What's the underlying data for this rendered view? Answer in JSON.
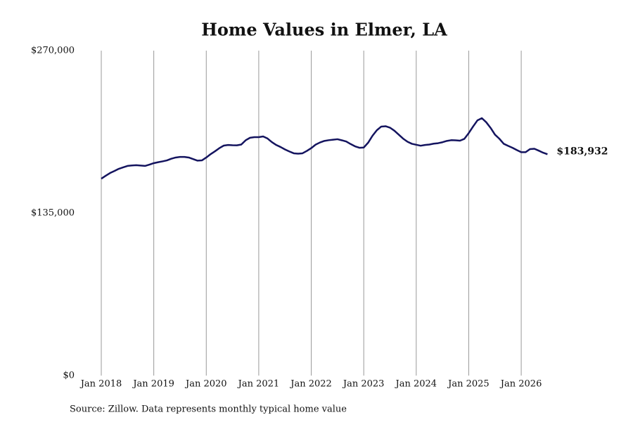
{
  "chart_data": {
    "type": "line",
    "title": "Home Values in Elmer, LA",
    "source": "Source: Zillow. Data represents monthly typical home value",
    "x": [
      "2018-01",
      "2018-02",
      "2018-03",
      "2018-04",
      "2018-05",
      "2018-06",
      "2018-07",
      "2018-08",
      "2018-09",
      "2018-10",
      "2018-11",
      "2018-12",
      "2019-01",
      "2019-02",
      "2019-03",
      "2019-04",
      "2019-05",
      "2019-06",
      "2019-07",
      "2019-08",
      "2019-09",
      "2019-10",
      "2019-11",
      "2019-12",
      "2020-01",
      "2020-02",
      "2020-03",
      "2020-04",
      "2020-05",
      "2020-06",
      "2020-07",
      "2020-08",
      "2020-09",
      "2020-10",
      "2020-11",
      "2020-12",
      "2021-01",
      "2021-02",
      "2021-03",
      "2021-04",
      "2021-05",
      "2021-06",
      "2021-07",
      "2021-08",
      "2021-09",
      "2021-10",
      "2021-11",
      "2021-12",
      "2022-01",
      "2022-02",
      "2022-03",
      "2022-04",
      "2022-05",
      "2022-06",
      "2022-07",
      "2022-08",
      "2022-09",
      "2022-10",
      "2022-11",
      "2022-12",
      "2023-01",
      "2023-02",
      "2023-03",
      "2023-04",
      "2023-05",
      "2023-06",
      "2023-07",
      "2023-08",
      "2023-09",
      "2023-10",
      "2023-11",
      "2023-12",
      "2024-01",
      "2024-02",
      "2024-03",
      "2024-04",
      "2024-05",
      "2024-06",
      "2024-07",
      "2024-08",
      "2024-09",
      "2024-10",
      "2024-11",
      "2024-12",
      "2025-01",
      "2025-02",
      "2025-03",
      "2025-04",
      "2025-05",
      "2025-06",
      "2025-07",
      "2025-08",
      "2025-09",
      "2025-10",
      "2025-11",
      "2025-12",
      "2026-01",
      "2026-02",
      "2026-03",
      "2026-04",
      "2026-05",
      "2026-06",
      "2026-07"
    ],
    "xticks": [
      {
        "value": "2018-01",
        "label": "Jan 2018"
      },
      {
        "value": "2019-01",
        "label": "Jan 2019"
      },
      {
        "value": "2020-01",
        "label": "Jan 2020"
      },
      {
        "value": "2021-01",
        "label": "Jan 2021"
      },
      {
        "value": "2022-01",
        "label": "Jan 2022"
      },
      {
        "value": "2023-01",
        "label": "Jan 2023"
      },
      {
        "value": "2024-01",
        "label": "Jan 2024"
      },
      {
        "value": "2025-01",
        "label": "Jan 2025"
      },
      {
        "value": "2026-01",
        "label": "Jan 2026"
      }
    ],
    "series": [
      {
        "color": "#14145f",
        "values": [
          163600,
          166000,
          168300,
          170000,
          171800,
          173000,
          174200,
          174600,
          174800,
          174500,
          174200,
          175300,
          176500,
          177300,
          178000,
          178800,
          180200,
          181200,
          181700,
          181700,
          181200,
          179900,
          178600,
          178800,
          181200,
          184000,
          186400,
          189000,
          191100,
          191600,
          191400,
          191300,
          192000,
          195500,
          197600,
          198100,
          198100,
          198700,
          197000,
          194000,
          191600,
          189900,
          187900,
          186200,
          184700,
          184400,
          184700,
          186700,
          189000,
          191900,
          193700,
          195000,
          195600,
          196000,
          196400,
          195500,
          194500,
          192400,
          190500,
          189300,
          189500,
          193500,
          199300,
          203900,
          206900,
          207200,
          206000,
          203500,
          200200,
          196900,
          194300,
          192600,
          191800,
          191000,
          191600,
          192000,
          192700,
          193100,
          193900,
          195000,
          195600,
          195500,
          195200,
          196700,
          201500,
          207000,
          212100,
          213900,
          210500,
          205800,
          200200,
          196800,
          192600,
          190900,
          189300,
          187400,
          185600,
          185600,
          188200,
          188500,
          186900,
          185200,
          183932
        ],
        "value_labels": [
          null,
          null,
          null,
          null,
          null,
          null,
          null,
          null,
          null,
          null,
          null,
          null,
          null,
          null,
          null,
          null,
          null,
          null,
          null,
          null,
          null,
          null,
          null,
          null,
          null,
          null,
          null,
          null,
          null,
          null,
          null,
          null,
          null,
          null,
          null,
          null,
          null,
          null,
          null,
          null,
          null,
          null,
          null,
          null,
          null,
          null,
          null,
          null,
          null,
          null,
          null,
          null,
          null,
          null,
          null,
          null,
          null,
          null,
          null,
          null,
          null,
          null,
          null,
          null,
          null,
          null,
          null,
          null,
          null,
          null,
          null,
          null,
          null,
          null,
          null,
          null,
          null,
          null,
          null,
          null,
          null,
          null,
          null,
          null,
          null,
          null,
          null,
          null,
          null,
          null,
          null,
          null,
          null,
          null,
          null,
          null,
          null,
          null,
          null,
          null,
          null,
          null,
          "$183,932"
        ]
      }
    ],
    "ylim": [
      0,
      270000
    ],
    "yticks": [
      {
        "value": 0,
        "label": "$0"
      },
      {
        "value": 135000,
        "label": "$135,000"
      },
      {
        "value": 270000,
        "label": "$270,000"
      }
    ],
    "grid": "x"
  }
}
